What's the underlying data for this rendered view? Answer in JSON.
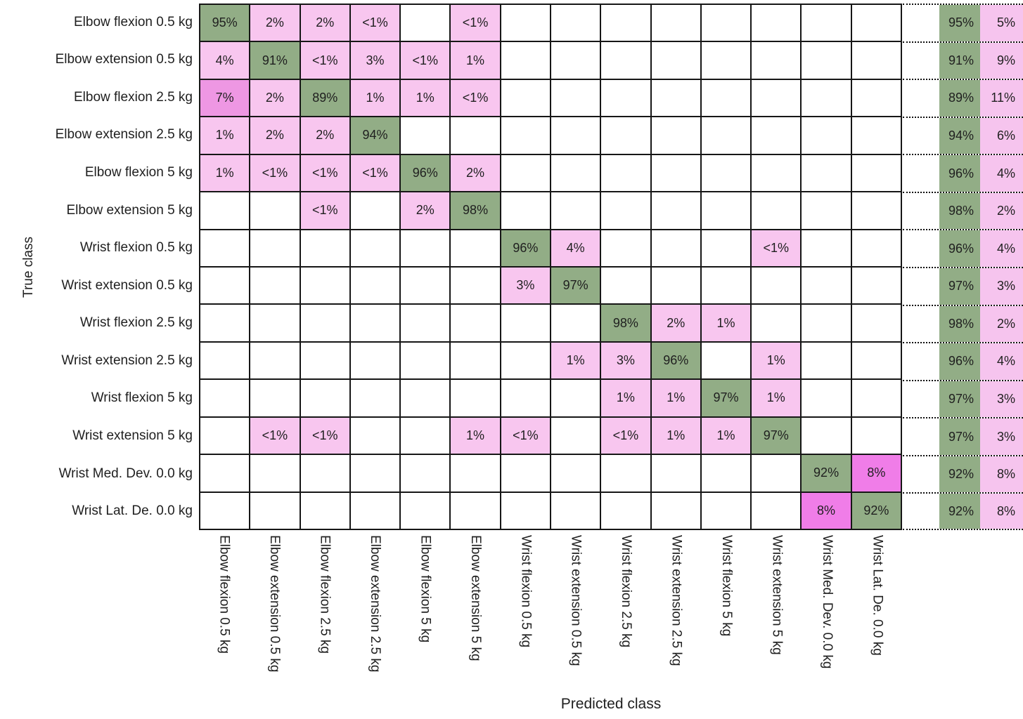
{
  "chart_data": {
    "type": "heatmap",
    "subtype": "confusion-matrix",
    "title": "",
    "xlabel": "Predicted class",
    "ylabel": "True class",
    "grid": true,
    "legend_position": "none",
    "classes": [
      "Elbow flexion 0.5 kg",
      "Elbow extension 0.5 kg",
      "Elbow flexion 2.5 kg",
      "Elbow extension 2.5 kg",
      "Elbow flexion 5 kg",
      "Elbow extension 5 kg",
      "Wrist flexion 0.5 kg",
      "Wrist extension 0.5 kg",
      "Wrist flexion 2.5 kg",
      "Wrist extension 2.5 kg",
      "Wrist flexion 5 kg",
      "Wrist extension 5 kg",
      "Wrist Med. Dev. 0.0 kg",
      "Wrist Lat. De. 0.0 kg"
    ],
    "matrix": [
      [
        "95%",
        "2%",
        "2%",
        "<1%",
        "",
        "<1%",
        "",
        "",
        "",
        "",
        "",
        "",
        "",
        ""
      ],
      [
        "4%",
        "91%",
        "<1%",
        "3%",
        "<1%",
        "1%",
        "",
        "",
        "",
        "",
        "",
        "",
        "",
        ""
      ],
      [
        "7%",
        "2%",
        "89%",
        "1%",
        "1%",
        "<1%",
        "",
        "",
        "",
        "",
        "",
        "",
        "",
        ""
      ],
      [
        "1%",
        "2%",
        "2%",
        "94%",
        "",
        "",
        "",
        "",
        "",
        "",
        "",
        "",
        "",
        ""
      ],
      [
        "1%",
        "<1%",
        "<1%",
        "<1%",
        "96%",
        "2%",
        "",
        "",
        "",
        "",
        "",
        "",
        "",
        ""
      ],
      [
        "",
        "",
        "<1%",
        "",
        "2%",
        "98%",
        "",
        "",
        "",
        "",
        "",
        "",
        "",
        ""
      ],
      [
        "",
        "",
        "",
        "",
        "",
        "",
        "96%",
        "4%",
        "",
        "",
        "",
        "<1%",
        "",
        ""
      ],
      [
        "",
        "",
        "",
        "",
        "",
        "",
        "3%",
        "97%",
        "",
        "",
        "",
        "",
        "",
        ""
      ],
      [
        "",
        "",
        "",
        "",
        "",
        "",
        "",
        "",
        "98%",
        "2%",
        "1%",
        "",
        "",
        ""
      ],
      [
        "",
        "",
        "",
        "",
        "",
        "",
        "",
        "1%",
        "3%",
        "96%",
        "",
        "1%",
        "",
        ""
      ],
      [
        "",
        "",
        "",
        "",
        "",
        "",
        "",
        "",
        "1%",
        "1%",
        "97%",
        "1%",
        "",
        ""
      ],
      [
        "",
        "<1%",
        "<1%",
        "",
        "",
        "1%",
        "<1%",
        "",
        "<1%",
        "1%",
        "1%",
        "97%",
        "",
        ""
      ],
      [
        "",
        "",
        "",
        "",
        "",
        "",
        "",
        "",
        "",
        "",
        "",
        "",
        "92%",
        "8%"
      ],
      [
        "",
        "",
        "",
        "",
        "",
        "",
        "",
        "",
        "",
        "",
        "",
        "",
        "8%",
        "92%"
      ]
    ],
    "row_summary": {
      "correct": [
        "95%",
        "91%",
        "89%",
        "94%",
        "96%",
        "98%",
        "96%",
        "97%",
        "98%",
        "96%",
        "97%",
        "97%",
        "92%",
        "92%"
      ],
      "error": [
        "5%",
        "9%",
        "11%",
        "6%",
        "4%",
        "2%",
        "4%",
        "3%",
        "2%",
        "4%",
        "3%",
        "3%",
        "8%",
        "8%"
      ]
    },
    "colors": {
      "diagonal_green": "#92ad86",
      "offdiag_pink_low": "#f8c6ef",
      "offdiag_pink_mid": "#ee97e3",
      "offdiag_pink_high": "#f07de8",
      "empty_cell": "#ffffff",
      "summary_correct_bg": "#92ad86",
      "summary_error_bg": "#f6c4ee",
      "grid_border": "#161616",
      "text": "#1f1f1f"
    }
  }
}
